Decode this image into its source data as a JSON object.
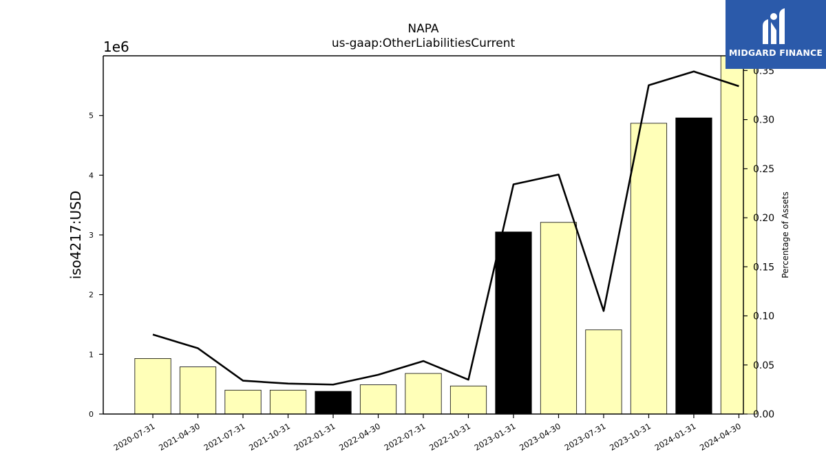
{
  "header": {
    "title": "NAPA",
    "subtitle": "us-gaap:OtherLiabilitiesCurrent"
  },
  "logo": {
    "text": "MIDGARD FINANCE",
    "background": "#2b5aaa"
  },
  "chart_data": {
    "type": "bar",
    "categories": [
      "2020-07-31",
      "2021-04-30",
      "2021-07-31",
      "2021-10-31",
      "2022-01-31",
      "2022-04-30",
      "2022-07-31",
      "2022-10-31",
      "2023-01-31",
      "2023-04-30",
      "2023-07-31",
      "2023-10-31",
      "2024-01-31",
      "2024-04-30"
    ],
    "values": [
      930000,
      790000,
      400000,
      400000,
      380000,
      490000,
      680000,
      470000,
      3050000,
      3210000,
      1410000,
      4870000,
      4960000,
      6000000
    ],
    "highlight": [
      false,
      false,
      false,
      false,
      true,
      false,
      false,
      false,
      true,
      false,
      false,
      false,
      true,
      false
    ],
    "line_values": [
      0.081,
      0.067,
      0.034,
      0.031,
      0.03,
      0.04,
      0.054,
      0.035,
      0.234,
      0.244,
      0.105,
      0.335,
      0.349,
      0.334
    ],
    "ylabel": "iso4217:USD",
    "y_multiplier": "1e6",
    "ylim": [
      0,
      6000000
    ],
    "y_ticks": [
      0,
      1000000,
      2000000,
      3000000,
      4000000,
      5000000
    ],
    "y_tick_labels": [
      "0",
      "1",
      "2",
      "3",
      "4",
      "5"
    ],
    "y2label": "Percentage of Assets",
    "y2lim": [
      0,
      0.365
    ],
    "y2_ticks": [
      0,
      0.05,
      0.1,
      0.15,
      0.2,
      0.25,
      0.3,
      0.35
    ],
    "y2_tick_labels": [
      "0.00",
      "0.05",
      "0.10",
      "0.15",
      "0.20",
      "0.25",
      "0.30",
      "0.35"
    ],
    "bar_color": "#ffffb8",
    "highlight_color": "#000000",
    "line_color": "#000000",
    "grid": false
  }
}
